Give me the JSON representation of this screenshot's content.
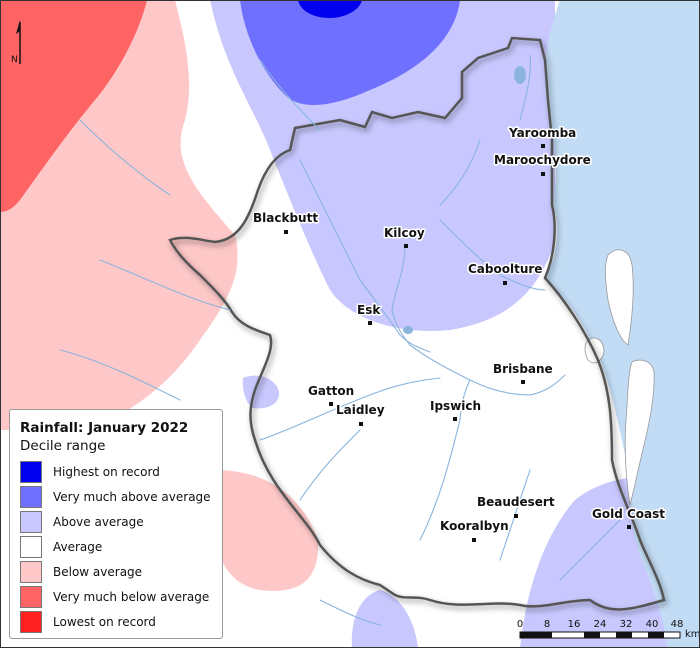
{
  "map": {
    "north_label": "N",
    "places": [
      {
        "name": "Yaroomba"
      },
      {
        "name": "Maroochydore"
      },
      {
        "name": "Blackbutt"
      },
      {
        "name": "Kilcoy"
      },
      {
        "name": "Caboolture"
      },
      {
        "name": "Esk"
      },
      {
        "name": "Brisbane"
      },
      {
        "name": "Gatton"
      },
      {
        "name": "Laidley"
      },
      {
        "name": "Ipswich"
      },
      {
        "name": "Beaudesert"
      },
      {
        "name": "Gold Coast"
      },
      {
        "name": "Kooralbyn"
      }
    ]
  },
  "legend": {
    "title": "Rainfall: January 2022",
    "subtitle": "Decile range",
    "items": [
      {
        "label": "Highest on record",
        "color": "#0000ee"
      },
      {
        "label": "Very much above average",
        "color": "#7070ff"
      },
      {
        "label": "Above average",
        "color": "#c8c8ff"
      },
      {
        "label": "Average",
        "color": "#ffffff"
      },
      {
        "label": "Below average",
        "color": "#ffc8c8"
      },
      {
        "label": "Very much below average",
        "color": "#ff6464"
      },
      {
        "label": "Lowest on record",
        "color": "#ff2020"
      }
    ]
  },
  "scale_bar": {
    "ticks": [
      "0",
      "8",
      "16",
      "24",
      "32",
      "40",
      "48"
    ],
    "unit": "km"
  },
  "colors": {
    "ocean": "#c2dcf5",
    "river": "#8ab4dc",
    "region_outline": "#555555"
  }
}
